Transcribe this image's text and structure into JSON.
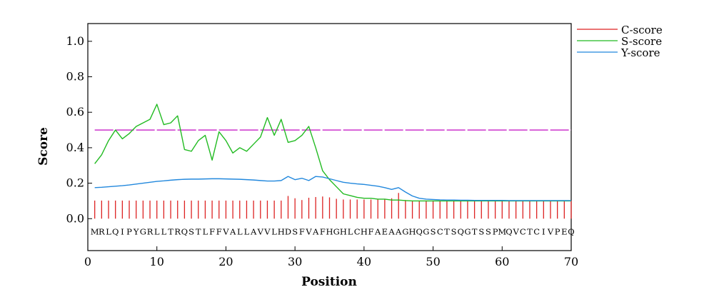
{
  "chart_data": {
    "type": "line",
    "xlabel": "Position",
    "ylabel": "Score",
    "xlim": [
      0,
      70
    ],
    "ylim": [
      -0.18,
      1.1
    ],
    "x_ticks": [
      0,
      10,
      20,
      30,
      40,
      50,
      60,
      70
    ],
    "y_ticks": [
      0.0,
      0.2,
      0.4,
      0.6,
      0.8,
      1.0
    ],
    "x_tick_labels": [
      "0",
      "10",
      "20",
      "30",
      "40",
      "50",
      "60",
      "70"
    ],
    "y_tick_labels": [
      "0.0",
      "0.2",
      "0.4",
      "0.6",
      "0.8",
      "1.0"
    ],
    "legend_position": "top-right",
    "threshold": {
      "value": 0.5,
      "color": "#cc33cc"
    },
    "sequence": [
      "M",
      "R",
      "L",
      "Q",
      "I",
      "P",
      "Y",
      "G",
      "R",
      "L",
      "L",
      "T",
      "R",
      "Q",
      "S",
      "T",
      "L",
      "F",
      "F",
      "V",
      "A",
      "L",
      "L",
      "A",
      "V",
      "V",
      "L",
      "H",
      "D",
      "S",
      "F",
      "V",
      "A",
      "F",
      "H",
      "G",
      "H",
      "L",
      "C",
      "H",
      "F",
      "A",
      "E",
      "A",
      "A",
      "G",
      "H",
      "Q",
      "G",
      "S",
      "C",
      "T",
      "S",
      "Q",
      "G",
      "T",
      "S",
      "S",
      "P",
      "M",
      "Q",
      "V",
      "C",
      "T",
      "C",
      "I",
      "V",
      "P",
      "E",
      "Q"
    ],
    "series": [
      {
        "name": "C-score",
        "style": "stem",
        "color": "#dd2222",
        "x": [
          1,
          2,
          3,
          4,
          5,
          6,
          7,
          8,
          9,
          10,
          11,
          12,
          13,
          14,
          15,
          16,
          17,
          18,
          19,
          20,
          21,
          22,
          23,
          24,
          25,
          26,
          27,
          28,
          29,
          30,
          31,
          32,
          33,
          34,
          35,
          36,
          37,
          38,
          39,
          40,
          41,
          42,
          43,
          44,
          45,
          46,
          47,
          48,
          49,
          50,
          51,
          52,
          53,
          54,
          55,
          56,
          57,
          58,
          59,
          60,
          61,
          62,
          63,
          64,
          65,
          66,
          67,
          68,
          69,
          70
        ],
        "values": [
          0.102,
          0.102,
          0.102,
          0.102,
          0.102,
          0.102,
          0.102,
          0.102,
          0.102,
          0.102,
          0.102,
          0.102,
          0.102,
          0.102,
          0.102,
          0.102,
          0.102,
          0.102,
          0.102,
          0.102,
          0.102,
          0.102,
          0.102,
          0.102,
          0.102,
          0.102,
          0.102,
          0.102,
          0.128,
          0.115,
          0.105,
          0.118,
          0.122,
          0.125,
          0.12,
          0.112,
          0.108,
          0.108,
          0.108,
          0.108,
          0.108,
          0.108,
          0.112,
          0.115,
          0.145,
          0.105,
          0.102,
          0.102,
          0.102,
          0.102,
          0.102,
          0.102,
          0.102,
          0.102,
          0.102,
          0.102,
          0.102,
          0.102,
          0.102,
          0.102,
          0.102,
          0.102,
          0.102,
          0.102,
          0.102,
          0.102,
          0.102,
          0.102,
          0.102,
          0.102
        ]
      },
      {
        "name": "S-score",
        "style": "line",
        "color": "#22bb22",
        "x": [
          1,
          2,
          3,
          4,
          5,
          6,
          7,
          8,
          9,
          10,
          11,
          12,
          13,
          14,
          15,
          16,
          17,
          18,
          19,
          20,
          21,
          22,
          23,
          24,
          25,
          26,
          27,
          28,
          29,
          30,
          31,
          32,
          33,
          34,
          35,
          36,
          37,
          38,
          39,
          40,
          41,
          42,
          43,
          44,
          45,
          46,
          47,
          48,
          49,
          50,
          51,
          52,
          53,
          54,
          55,
          56,
          57,
          58,
          59,
          60,
          61,
          62,
          63,
          64,
          65,
          66,
          67,
          68,
          69,
          70
        ],
        "values": [
          0.31,
          0.36,
          0.44,
          0.5,
          0.45,
          0.48,
          0.52,
          0.54,
          0.56,
          0.645,
          0.53,
          0.54,
          0.58,
          0.39,
          0.38,
          0.44,
          0.47,
          0.33,
          0.49,
          0.44,
          0.37,
          0.4,
          0.38,
          0.42,
          0.46,
          0.57,
          0.47,
          0.56,
          0.43,
          0.44,
          0.47,
          0.52,
          0.4,
          0.27,
          0.22,
          0.18,
          0.14,
          0.13,
          0.12,
          0.115,
          0.115,
          0.11,
          0.11,
          0.105,
          0.105,
          0.102,
          0.1,
          0.1,
          0.1,
          0.1,
          0.1,
          0.1,
          0.1,
          0.1,
          0.1,
          0.1,
          0.1,
          0.1,
          0.1,
          0.1,
          0.1,
          0.1,
          0.1,
          0.1,
          0.1,
          0.1,
          0.1,
          0.1,
          0.1,
          0.1
        ]
      },
      {
        "name": "Y-score",
        "style": "line",
        "color": "#2288dd",
        "x": [
          1,
          2,
          3,
          4,
          5,
          6,
          7,
          8,
          9,
          10,
          11,
          12,
          13,
          14,
          15,
          16,
          17,
          18,
          19,
          20,
          21,
          22,
          23,
          24,
          25,
          26,
          27,
          28,
          29,
          30,
          31,
          32,
          33,
          34,
          35,
          36,
          37,
          38,
          39,
          40,
          41,
          42,
          43,
          44,
          45,
          46,
          47,
          48,
          49,
          50,
          51,
          52,
          53,
          54,
          55,
          56,
          57,
          58,
          59,
          60,
          61,
          62,
          63,
          64,
          65,
          66,
          67,
          68,
          69,
          70
        ],
        "values": [
          0.175,
          0.177,
          0.18,
          0.183,
          0.186,
          0.19,
          0.195,
          0.2,
          0.205,
          0.21,
          0.213,
          0.217,
          0.22,
          0.222,
          0.223,
          0.223,
          0.224,
          0.225,
          0.225,
          0.224,
          0.223,
          0.222,
          0.22,
          0.218,
          0.215,
          0.212,
          0.212,
          0.215,
          0.238,
          0.22,
          0.228,
          0.215,
          0.238,
          0.235,
          0.225,
          0.215,
          0.205,
          0.2,
          0.196,
          0.193,
          0.188,
          0.183,
          0.175,
          0.165,
          0.175,
          0.15,
          0.128,
          0.115,
          0.11,
          0.108,
          0.106,
          0.105,
          0.105,
          0.104,
          0.104,
          0.103,
          0.103,
          0.103,
          0.103,
          0.103,
          0.102,
          0.102,
          0.102,
          0.102,
          0.102,
          0.102,
          0.102,
          0.102,
          0.102,
          0.102
        ]
      }
    ]
  }
}
